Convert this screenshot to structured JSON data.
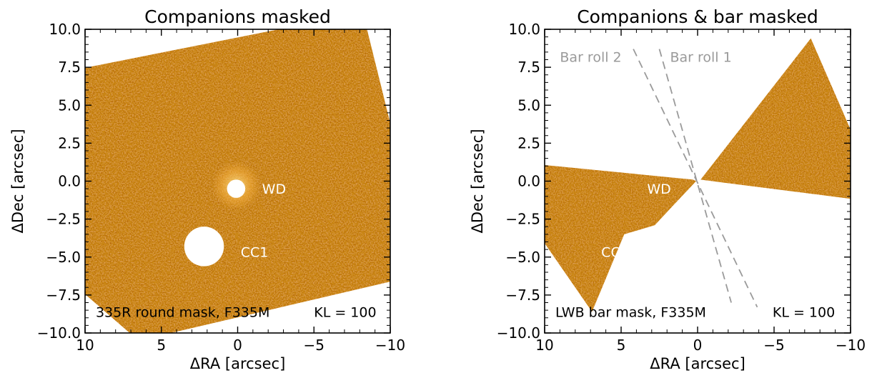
{
  "chart_data": [
    {
      "type": "heatmap",
      "title": "Companions masked",
      "xlabel": "ΔRA [arcsec]",
      "ylabel": "ΔDec [arcsec]",
      "xlim": [
        10,
        -10
      ],
      "ylim": [
        -10,
        10
      ],
      "x_ticks": [
        10,
        5,
        0,
        -5,
        -10
      ],
      "x_tick_labels": [
        "10",
        "5",
        "0",
        "−5",
        "−10"
      ],
      "y_ticks": [
        10,
        7.5,
        5,
        2.5,
        0,
        -2.5,
        -5,
        -7.5,
        -10
      ],
      "y_tick_labels": [
        "10.0",
        "7.5",
        "5.0",
        "2.5",
        "0.0",
        "−2.5",
        "−5.0",
        "−7.5",
        "−10.0"
      ],
      "field_polygon": [
        [
          10.8,
          7.3
        ],
        [
          -8.2,
          11.1
        ],
        [
          -10.2,
          3.0
        ],
        [
          -10.5,
          -6.5
        ],
        [
          6.5,
          -10.5
        ],
        [
          10.5,
          -7.0
        ]
      ],
      "masks": [
        {
          "label": "WD",
          "x": 0.1,
          "y": -0.5,
          "radius": 0.6
        },
        {
          "label": "CC1",
          "x": 2.2,
          "y": -4.3,
          "radius": 1.3
        }
      ],
      "halo": {
        "x": 0.1,
        "y": -0.3,
        "radius": 1.6
      },
      "annotations": [
        {
          "text": "WD",
          "x": -1.6,
          "y": -0.5,
          "color": "white"
        },
        {
          "text": "CC1",
          "x": -0.2,
          "y": -4.65,
          "color": "white"
        },
        {
          "text": "335R round mask, F335M",
          "x": 9.3,
          "y": -8.6,
          "color": "black"
        },
        {
          "text": "KL = 100",
          "x": -5.0,
          "y": -8.6,
          "color": "black"
        }
      ],
      "colormap": [
        "#fff0a8",
        "#f0a030",
        "#e07820",
        "#c85a14",
        "#8a3208"
      ]
    },
    {
      "type": "heatmap",
      "title": "Companions & bar masked",
      "xlabel": "ΔRA [arcsec]",
      "ylabel": "ΔDec [arcsec]",
      "xlim": [
        10,
        -10
      ],
      "ylim": [
        -10,
        10
      ],
      "x_ticks": [
        10,
        5,
        0,
        -5,
        -10
      ],
      "x_tick_labels": [
        "10",
        "5",
        "0",
        "−5",
        "−10"
      ],
      "y_ticks": [
        10,
        7.5,
        5,
        2.5,
        0,
        -2.5,
        -5,
        -7.5,
        -10
      ],
      "y_tick_labels": [
        "10.0",
        "7.5",
        "5.0",
        "2.5",
        "0.0",
        "−2.5",
        "−5.0",
        "−7.5",
        "−10.0"
      ],
      "region_right": [
        [
          -0.2,
          0.1
        ],
        [
          -7.4,
          9.4
        ],
        [
          -10.3,
          2.7
        ],
        [
          -10.3,
          -1.2
        ]
      ],
      "region_left": [
        [
          10.4,
          1.1
        ],
        [
          0.3,
          0.1
        ],
        [
          0.1,
          0.0
        ],
        [
          1.6,
          -1.6
        ],
        [
          2.8,
          -2.9
        ],
        [
          4.8,
          -3.5
        ],
        [
          6.9,
          -8.6
        ],
        [
          10.4,
          -3.5
        ]
      ],
      "bar_lines": [
        {
          "label": "Bar roll 2",
          "from": [
            4.2,
            8.7
          ],
          "to": [
            -3.9,
            -8.3
          ]
        },
        {
          "label": "Bar roll 1",
          "from": [
            2.5,
            8.7
          ],
          "to": [
            -2.2,
            -8.0
          ]
        }
      ],
      "annotations": [
        {
          "text": "Bar roll 2",
          "x": 9.0,
          "y": 8.2,
          "color": "gray"
        },
        {
          "text": "Bar roll 1",
          "x": 1.8,
          "y": 8.2,
          "color": "gray"
        },
        {
          "text": "WD",
          "x": 3.3,
          "y": -0.5,
          "color": "white"
        },
        {
          "text": "CC1",
          "x": 6.3,
          "y": -4.65,
          "color": "white"
        },
        {
          "text": "LWB bar mask, F335M",
          "x": 9.3,
          "y": -8.6,
          "color": "black"
        },
        {
          "text": "KL = 100",
          "x": -4.9,
          "y": -8.6,
          "color": "black"
        }
      ],
      "colormap": [
        "#fff0a8",
        "#f0a030",
        "#e07820",
        "#c85a14",
        "#8a3208"
      ]
    }
  ]
}
